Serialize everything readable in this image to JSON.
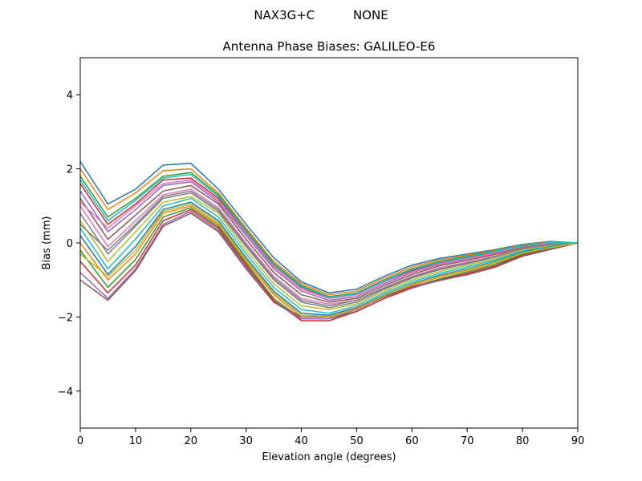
{
  "chart_data": {
    "type": "line",
    "suptitle": "NAX3G+C          NONE",
    "title": "Antenna Phase Biases: GALILEO-E6",
    "xlabel": "Elevation angle (degrees)",
    "ylabel": "Bias (mm)",
    "xlim": [
      0,
      90
    ],
    "ylim": [
      -5,
      5
    ],
    "xticks": [
      0,
      10,
      20,
      30,
      40,
      50,
      60,
      70,
      80,
      90
    ],
    "yticks": [
      -4,
      -2,
      0,
      2,
      4
    ],
    "grid": false,
    "legend": "none",
    "x": [
      0,
      5,
      10,
      15,
      20,
      25,
      30,
      35,
      40,
      45,
      50,
      55,
      60,
      65,
      70,
      75,
      80,
      85,
      90
    ],
    "colors": [
      "#1f77b4",
      "#ff7f0e",
      "#2ca02c",
      "#d62728",
      "#9467bd",
      "#8c564b",
      "#e377c2",
      "#7f7f7f",
      "#bcbd22",
      "#17becf"
    ],
    "series": [
      {
        "values": [
          2.2,
          1.05,
          1.45,
          2.1,
          2.15,
          1.45,
          0.5,
          -0.4,
          -1.05,
          -1.35,
          -1.25,
          -0.9,
          -0.6,
          -0.42,
          -0.3,
          -0.18,
          -0.04,
          0.04,
          0.0
        ]
      },
      {
        "values": [
          2.0,
          0.9,
          1.35,
          1.95,
          2.0,
          1.35,
          0.4,
          -0.5,
          -1.1,
          -1.4,
          -1.3,
          -0.95,
          -0.65,
          -0.46,
          -0.33,
          -0.2,
          -0.06,
          0.03,
          0.0
        ]
      },
      {
        "values": [
          1.8,
          0.7,
          1.2,
          1.8,
          1.9,
          1.3,
          0.35,
          -0.55,
          -1.15,
          -1.45,
          -1.35,
          -1.0,
          -0.7,
          -0.5,
          -0.36,
          -0.22,
          -0.07,
          0.02,
          0.0
        ]
      },
      {
        "values": [
          1.6,
          0.5,
          1.05,
          1.7,
          1.75,
          1.2,
          0.3,
          -0.6,
          -1.2,
          -1.5,
          -1.4,
          -1.05,
          -0.75,
          -0.54,
          -0.4,
          -0.25,
          -0.09,
          0.01,
          0.0
        ]
      },
      {
        "values": [
          1.4,
          0.3,
          0.9,
          1.55,
          1.65,
          1.1,
          0.2,
          -0.7,
          -1.3,
          -1.55,
          -1.45,
          -1.1,
          -0.8,
          -0.58,
          -0.43,
          -0.28,
          -0.1,
          0.0,
          0.0
        ]
      },
      {
        "values": [
          1.2,
          0.1,
          0.75,
          1.4,
          1.55,
          1.05,
          0.1,
          -0.8,
          -1.4,
          -1.6,
          -1.5,
          -1.15,
          -0.85,
          -0.62,
          -0.47,
          -0.31,
          -0.12,
          -0.02,
          0.0
        ]
      },
      {
        "values": [
          1.0,
          -0.1,
          0.6,
          1.3,
          1.45,
          0.95,
          0.0,
          -0.9,
          -1.5,
          -1.65,
          -1.55,
          -1.2,
          -0.9,
          -0.67,
          -0.52,
          -0.35,
          -0.14,
          -0.04,
          0.0
        ]
      },
      {
        "values": [
          0.8,
          -0.3,
          0.45,
          1.2,
          1.35,
          0.85,
          -0.1,
          -1.0,
          -1.6,
          -1.75,
          -1.6,
          -1.25,
          -0.95,
          -0.72,
          -0.56,
          -0.38,
          -0.16,
          -0.06,
          0.0
        ]
      },
      {
        "values": [
          0.6,
          -0.5,
          0.3,
          1.1,
          1.25,
          0.8,
          -0.2,
          -1.1,
          -1.7,
          -1.8,
          -1.65,
          -1.3,
          -1.0,
          -0.77,
          -0.6,
          -0.42,
          -0.19,
          -0.08,
          0.0
        ]
      },
      {
        "values": [
          0.4,
          -0.7,
          0.1,
          1.0,
          1.2,
          0.7,
          -0.3,
          -1.2,
          -1.8,
          -1.9,
          -1.7,
          -1.35,
          -1.05,
          -0.82,
          -0.65,
          -0.46,
          -0.22,
          -0.1,
          0.0
        ]
      },
      {
        "values": [
          0.2,
          -0.85,
          -0.1,
          0.9,
          1.1,
          0.6,
          -0.4,
          -1.3,
          -1.9,
          -1.95,
          -1.75,
          -1.4,
          -1.1,
          -0.87,
          -0.7,
          -0.5,
          -0.25,
          -0.12,
          0.0
        ]
      },
      {
        "values": [
          0.0,
          -1.0,
          -0.3,
          0.8,
          1.0,
          0.5,
          -0.5,
          -1.4,
          -2.0,
          -2.0,
          -1.8,
          -1.45,
          -1.15,
          -0.92,
          -0.74,
          -0.54,
          -0.28,
          -0.14,
          0.0
        ]
      },
      {
        "values": [
          -0.2,
          -1.2,
          -0.45,
          0.7,
          0.95,
          0.45,
          -0.55,
          -1.5,
          -2.05,
          -2.05,
          -1.85,
          -1.5,
          -1.2,
          -0.97,
          -0.78,
          -0.58,
          -0.31,
          -0.15,
          0.0
        ]
      },
      {
        "values": [
          -0.5,
          -1.35,
          -0.6,
          0.6,
          0.9,
          0.4,
          -0.6,
          -1.55,
          -2.1,
          -2.1,
          -1.85,
          -1.5,
          -1.22,
          -1.0,
          -0.82,
          -0.62,
          -0.33,
          -0.16,
          0.0
        ]
      },
      {
        "values": [
          -0.8,
          -1.5,
          -0.7,
          0.5,
          0.85,
          0.35,
          -0.65,
          -1.6,
          -2.05,
          -2.05,
          -1.8,
          -1.45,
          -1.2,
          -1.02,
          -0.85,
          -0.65,
          -0.35,
          -0.17,
          0.0
        ]
      },
      {
        "values": [
          -1.0,
          -1.55,
          -0.75,
          0.45,
          0.8,
          0.3,
          -0.7,
          -1.6,
          -2.0,
          -2.0,
          -1.75,
          -1.45,
          -1.18,
          -1.0,
          -0.86,
          -0.66,
          -0.36,
          -0.18,
          0.0
        ]
      },
      {
        "values": [
          1.1,
          0.4,
          1.0,
          1.6,
          1.7,
          1.15,
          0.25,
          -0.65,
          -1.25,
          -1.5,
          -1.4,
          -1.05,
          -0.78,
          -0.56,
          -0.42,
          -0.27,
          -0.09,
          0.0,
          0.0
        ]
      },
      {
        "values": [
          0.5,
          -0.2,
          0.5,
          1.25,
          1.4,
          0.9,
          -0.05,
          -0.95,
          -1.55,
          -1.7,
          -1.55,
          -1.22,
          -0.92,
          -0.7,
          -0.54,
          -0.37,
          -0.15,
          -0.05,
          0.0
        ]
      },
      {
        "values": [
          -0.3,
          -0.9,
          -0.2,
          0.85,
          1.05,
          0.55,
          -0.45,
          -1.35,
          -1.95,
          -1.98,
          -1.78,
          -1.42,
          -1.12,
          -0.9,
          -0.72,
          -0.52,
          -0.27,
          -0.13,
          0.0
        ]
      },
      {
        "values": [
          1.7,
          0.6,
          1.15,
          1.75,
          1.85,
          1.25,
          0.32,
          -0.58,
          -1.18,
          -1.47,
          -1.37,
          -1.02,
          -0.72,
          -0.52,
          -0.38,
          -0.23,
          -0.08,
          0.02,
          0.0
        ]
      }
    ]
  }
}
